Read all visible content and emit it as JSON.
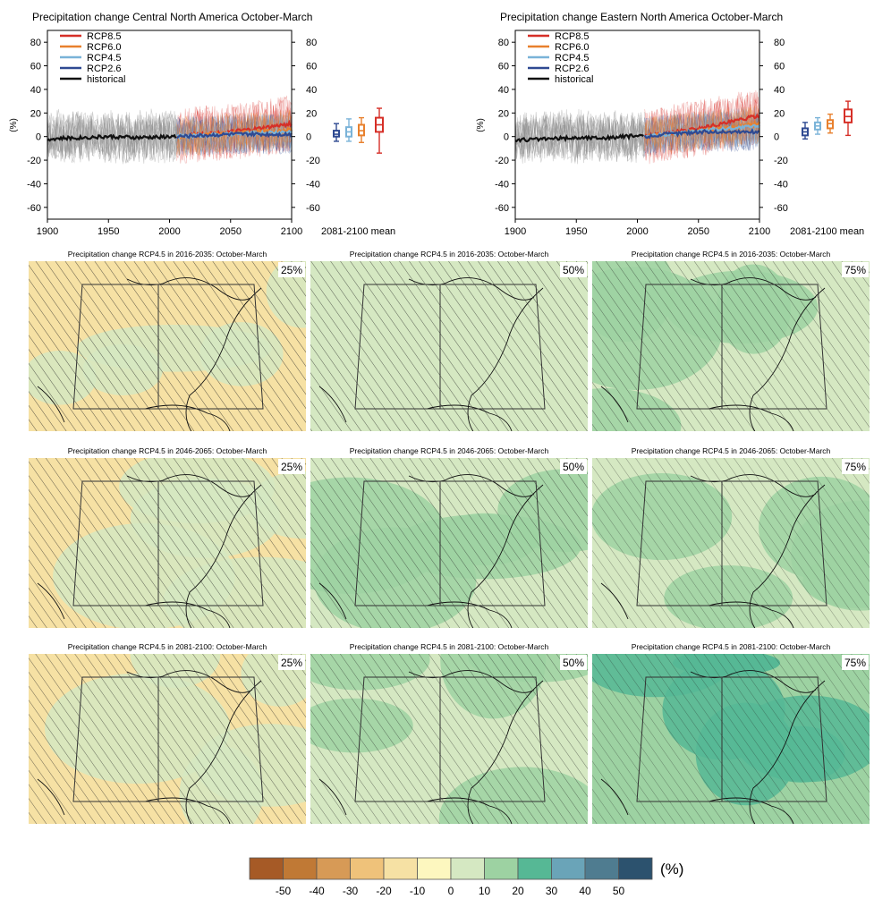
{
  "colors": {
    "rcp85": "#d62f27",
    "rcp60": "#e8802d",
    "rcp45": "#7ab3d8",
    "rcp26": "#2f4a92",
    "historical": "#111111",
    "historical_spread": "#8c8c8c",
    "colorbar": [
      "#a65a26",
      "#c07935",
      "#d79a56",
      "#efc27a",
      "#f6e1a4",
      "#fdf7bf",
      "#d5e8c2",
      "#9dd2a2",
      "#56b895",
      "#6aa4b8",
      "#4f7c90",
      "#2c526e"
    ]
  },
  "timeseries": [
    {
      "title": "Precipitation change Central North America October-March",
      "ylabel": "(%)",
      "mean_label": "2081-2100 mean"
    },
    {
      "title": "Precipitation change Eastern North America October-March",
      "ylabel": "(%)",
      "mean_label": "2081-2100 mean"
    }
  ],
  "maps": {
    "rows": [
      [
        "Precipitation change RCP4.5 in 2016-2035: October-March",
        "Precipitation change RCP4.5 in 2016-2035: October-March",
        "Precipitation change RCP4.5 in 2016-2035: October-March"
      ],
      [
        "Precipitation change RCP4.5 in 2046-2065: October-March",
        "Precipitation change RCP4.5 in 2046-2065: October-March",
        "Precipitation change RCP4.5 in 2046-2065: October-March"
      ],
      [
        "Precipitation change RCP4.5 in 2081-2100: October-March",
        "Precipitation change RCP4.5 in 2081-2100: October-March",
        "Precipitation change RCP4.5 in 2081-2100: October-March"
      ]
    ],
    "percentiles": [
      "25%",
      "50%",
      "75%"
    ]
  },
  "colorbar": {
    "unit": "(%)",
    "tick_labels": [
      "-50",
      "-40",
      "-30",
      "-20",
      "-10",
      "0",
      "10",
      "20",
      "30",
      "40",
      "50"
    ]
  },
  "chart_data": [
    {
      "type": "line",
      "title": "Precipitation change Central North America October-March",
      "ylabel": "(%)",
      "xlim": [
        1900,
        2100
      ],
      "ylim": [
        -70,
        90
      ],
      "xticks": [
        1900,
        1950,
        2000,
        2050,
        2100
      ],
      "yticks": [
        -60,
        -40,
        -20,
        0,
        20,
        40,
        60,
        80
      ],
      "legend": "top-left",
      "series": [
        {
          "name": "RCP8.5",
          "x": [
            2006,
            2025,
            2050,
            2075,
            2100
          ],
          "values": [
            0,
            2,
            4,
            7,
            11
          ]
        },
        {
          "name": "RCP6.0",
          "x": [
            2006,
            2025,
            2050,
            2075,
            2100
          ],
          "values": [
            0,
            1,
            3,
            4,
            6
          ]
        },
        {
          "name": "RCP4.5",
          "x": [
            2006,
            2025,
            2050,
            2075,
            2100
          ],
          "values": [
            0,
            1,
            2,
            3,
            4
          ]
        },
        {
          "name": "RCP2.6",
          "x": [
            2006,
            2025,
            2050,
            2075,
            2100
          ],
          "values": [
            0,
            1,
            2,
            2,
            2
          ]
        },
        {
          "name": "historical",
          "x": [
            1900,
            1925,
            1950,
            1975,
            2005
          ],
          "values": [
            -2,
            -1,
            0,
            -1,
            0
          ]
        }
      ],
      "boxes_2081_2100": [
        {
          "series": "RCP2.6",
          "min": -4,
          "q1": 0,
          "median": 2,
          "q3": 5,
          "max": 11
        },
        {
          "series": "RCP4.5",
          "min": -4,
          "q1": 0,
          "median": 4,
          "q3": 8,
          "max": 15
        },
        {
          "series": "RCP6.0",
          "min": -5,
          "q1": 1,
          "median": 5,
          "q3": 10,
          "max": 16
        },
        {
          "series": "RCP8.5",
          "min": -14,
          "q1": 4,
          "median": 10,
          "q3": 16,
          "max": 24
        }
      ]
    },
    {
      "type": "line",
      "title": "Precipitation change Eastern North America October-March",
      "ylabel": "(%)",
      "xlim": [
        1900,
        2100
      ],
      "ylim": [
        -70,
        90
      ],
      "xticks": [
        1900,
        1950,
        2000,
        2050,
        2100
      ],
      "yticks": [
        -60,
        -40,
        -20,
        0,
        20,
        40,
        60,
        80
      ],
      "legend": "top-left",
      "series": [
        {
          "name": "RCP8.5",
          "x": [
            2006,
            2025,
            2050,
            2075,
            2100
          ],
          "values": [
            0,
            3,
            7,
            12,
            18
          ]
        },
        {
          "name": "RCP6.0",
          "x": [
            2006,
            2025,
            2050,
            2075,
            2100
          ],
          "values": [
            0,
            2,
            5,
            7,
            11
          ]
        },
        {
          "name": "RCP4.5",
          "x": [
            2006,
            2025,
            2050,
            2075,
            2100
          ],
          "values": [
            0,
            2,
            5,
            7,
            9
          ]
        },
        {
          "name": "RCP2.6",
          "x": [
            2006,
            2025,
            2050,
            2075,
            2100
          ],
          "values": [
            0,
            2,
            4,
            4,
            4
          ]
        },
        {
          "name": "historical",
          "x": [
            1900,
            1925,
            1950,
            1975,
            2005
          ],
          "values": [
            -3,
            -2,
            -1,
            -1,
            1
          ]
        }
      ],
      "boxes_2081_2100": [
        {
          "series": "RCP2.6",
          "min": -2,
          "q1": 1,
          "median": 4,
          "q3": 7,
          "max": 12
        },
        {
          "series": "RCP4.5",
          "min": 2,
          "q1": 6,
          "median": 9,
          "q3": 12,
          "max": 16
        },
        {
          "series": "RCP6.0",
          "min": 3,
          "q1": 7,
          "median": 11,
          "q3": 14,
          "max": 19
        },
        {
          "series": "RCP8.5",
          "min": 1,
          "q1": 12,
          "median": 17,
          "q3": 23,
          "max": 30
        }
      ]
    }
  ]
}
